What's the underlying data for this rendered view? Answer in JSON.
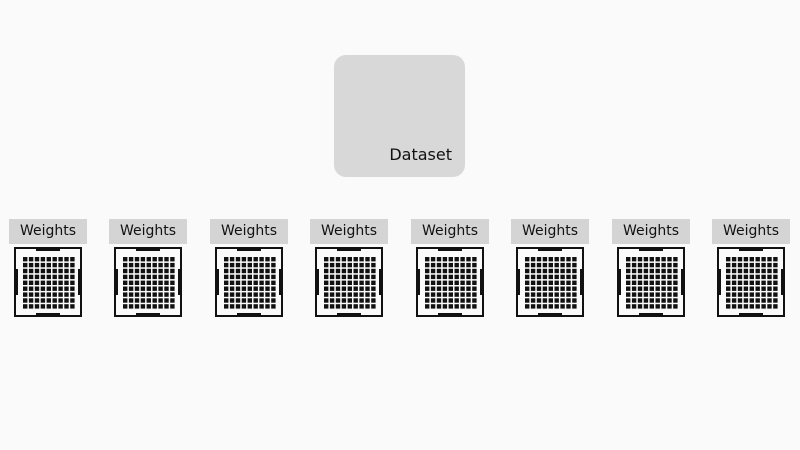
{
  "dataset": {
    "label": "Dataset"
  },
  "workers": [
    {
      "label": "Weights"
    },
    {
      "label": "Weights"
    },
    {
      "label": "Weights"
    },
    {
      "label": "Weights"
    },
    {
      "label": "Weights"
    },
    {
      "label": "Weights"
    },
    {
      "label": "Weights"
    },
    {
      "label": "Weights"
    }
  ],
  "colors": {
    "background": "#fafafa",
    "dataset_fill": "#d8d8d8",
    "label_fill": "#d4d4d4",
    "chip_stroke": "#111111"
  },
  "icons": {
    "chip": "gpu-chip-icon"
  }
}
